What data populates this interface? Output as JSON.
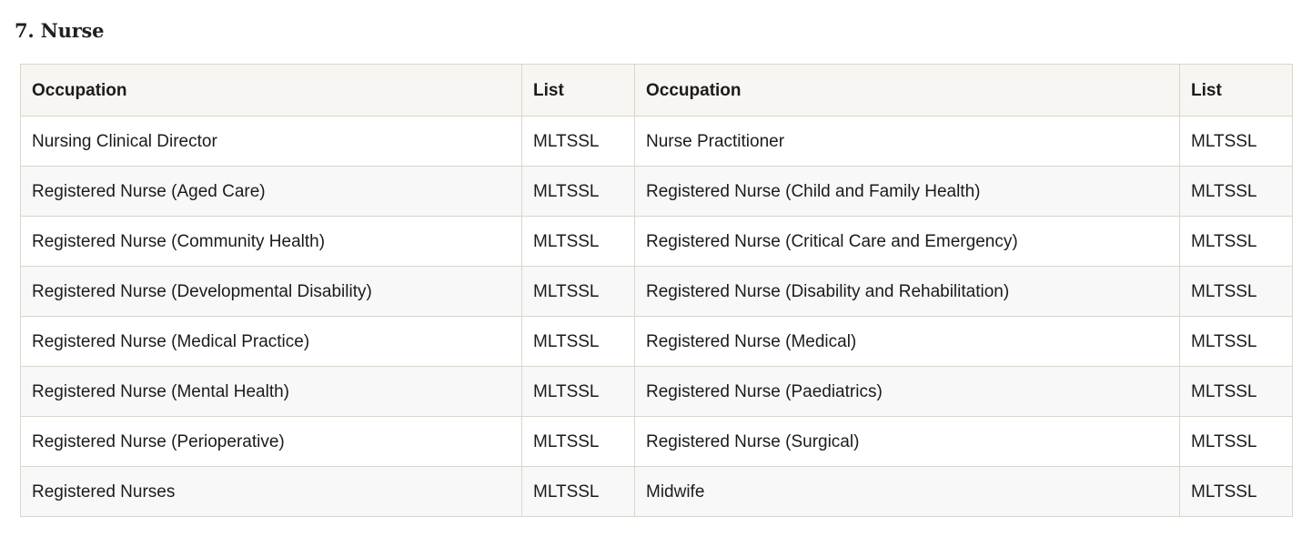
{
  "page": {
    "heading": "7. Nurse"
  },
  "table": {
    "columns": [
      "Occupation",
      "List",
      "Occupation",
      "List"
    ],
    "rows": [
      [
        "Nursing Clinical Director",
        "MLTSSL",
        "Nurse Practitioner",
        "MLTSSL"
      ],
      [
        "Registered Nurse (Aged Care)",
        "MLTSSL",
        "Registered Nurse (Child and Family Health)",
        "MLTSSL"
      ],
      [
        "Registered Nurse (Community Health)",
        "MLTSSL",
        "Registered Nurse (Critical Care and Emergency)",
        "MLTSSL"
      ],
      [
        "Registered Nurse (Developmental Disability)",
        "MLTSSL",
        "Registered Nurse (Disability and Rehabilitation)",
        "MLTSSL"
      ],
      [
        "Registered Nurse (Medical Practice)",
        "MLTSSL",
        "Registered Nurse (Medical)",
        "MLTSSL"
      ],
      [
        "Registered Nurse (Mental Health)",
        "MLTSSL",
        "Registered Nurse (Paediatrics)",
        "MLTSSL"
      ],
      [
        "Registered Nurse (Perioperative)",
        "MLTSSL",
        "Registered Nurse (Surgical)",
        "MLTSSL"
      ],
      [
        "Registered Nurses",
        "MLTSSL",
        "Midwife",
        "MLTSSL"
      ]
    ]
  },
  "colors": {
    "header_bg": "#f8f6f2",
    "stripe_bg": "#f8f8f8",
    "border": "#ddd5c7",
    "text": "#1b1b1b",
    "heading_text": "#23201c",
    "page_bg": "#ffffff"
  }
}
